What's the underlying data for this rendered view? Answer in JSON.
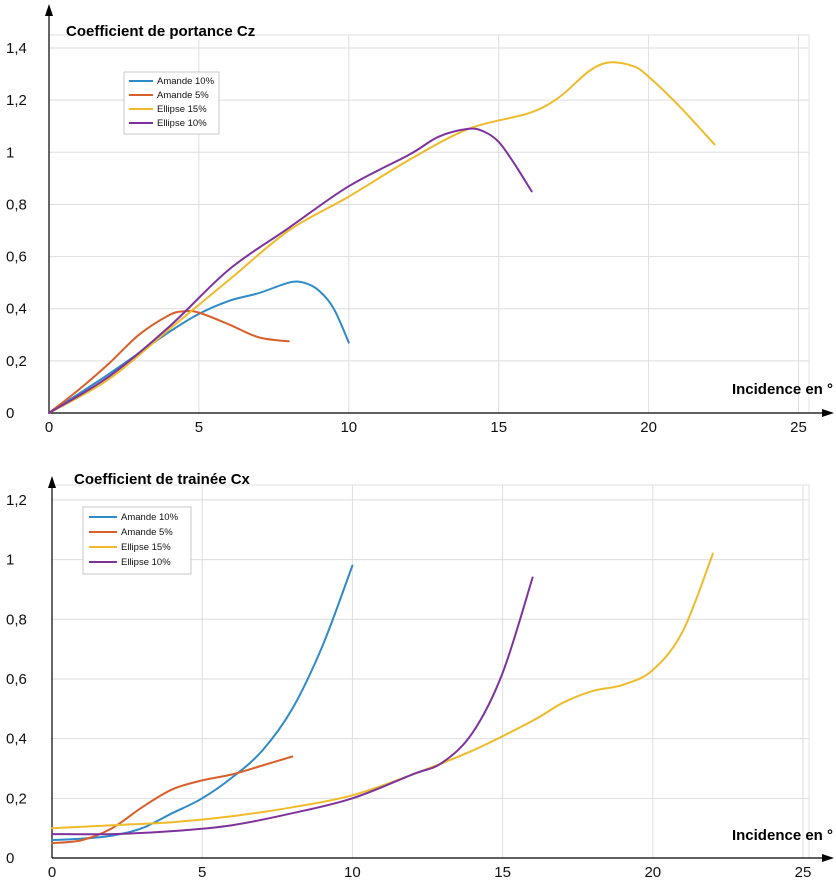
{
  "colors": {
    "amande10": "#2f8ac8",
    "amande5": "#d95f2a",
    "ellipse15": "#efbb2b",
    "ellipse10": "#7e339c"
  },
  "chart_data": [
    {
      "type": "line",
      "title": "Coefficient de portance Cz",
      "xlabel": "Incidence en °",
      "ylabel": "",
      "xlim": [
        0,
        26
      ],
      "ylim": [
        0,
        1.45
      ],
      "xticks": [
        "0",
        "5",
        "10",
        "15",
        "20",
        "25"
      ],
      "yticks": [
        "0",
        "0,2",
        "0,4",
        "0,6",
        "0,8",
        "1",
        "1,2",
        "1,4"
      ],
      "grid": true,
      "legend": "top-left",
      "series": [
        {
          "name": "Amande 10%",
          "color_key": "amande10",
          "points": [
            [
              0,
              0
            ],
            [
              2,
              0.15
            ],
            [
              4,
              0.31
            ],
            [
              5,
              0.38
            ],
            [
              6,
              0.43
            ],
            [
              7,
              0.46
            ],
            [
              8,
              0.5
            ],
            [
              8.5,
              0.5
            ],
            [
              9,
              0.47
            ],
            [
              9.5,
              0.4
            ],
            [
              10,
              0.27
            ]
          ]
        },
        {
          "name": "Amande 5%",
          "color_key": "amande5",
          "points": [
            [
              0,
              0
            ],
            [
              1,
              0.09
            ],
            [
              2,
              0.19
            ],
            [
              3,
              0.3
            ],
            [
              4,
              0.375
            ],
            [
              4.5,
              0.39
            ],
            [
              5,
              0.385
            ],
            [
              6,
              0.34
            ],
            [
              7,
              0.29
            ],
            [
              8,
              0.275
            ]
          ]
        },
        {
          "name": "Ellipse 15%",
          "color_key": "ellipse15",
          "points": [
            [
              0,
              0
            ],
            [
              2,
              0.13
            ],
            [
              4,
              0.32
            ],
            [
              6,
              0.51
            ],
            [
              8,
              0.7
            ],
            [
              10,
              0.83
            ],
            [
              12,
              0.97
            ],
            [
              14,
              1.09
            ],
            [
              16,
              1.15
            ],
            [
              17,
              1.21
            ],
            [
              18,
              1.31
            ],
            [
              18.7,
              1.345
            ],
            [
              19.5,
              1.33
            ],
            [
              20,
              1.29
            ],
            [
              21,
              1.18
            ],
            [
              22.2,
              1.03
            ]
          ]
        },
        {
          "name": "Ellipse 10%",
          "color_key": "ellipse10",
          "points": [
            [
              0,
              0
            ],
            [
              2,
              0.14
            ],
            [
              4,
              0.33
            ],
            [
              6,
              0.55
            ],
            [
              8,
              0.71
            ],
            [
              10,
              0.87
            ],
            [
              12,
              0.99
            ],
            [
              13,
              1.06
            ],
            [
              14,
              1.09
            ],
            [
              14.5,
              1.08
            ],
            [
              15,
              1.04
            ],
            [
              15.5,
              0.96
            ],
            [
              16.1,
              0.85
            ]
          ]
        }
      ]
    },
    {
      "type": "line",
      "title": "Coefficient de trainée Cx",
      "xlabel": "Incidence en °",
      "ylabel": "",
      "xlim": [
        0,
        26
      ],
      "ylim": [
        0,
        1.25
      ],
      "xticks": [
        "0",
        "5",
        "10",
        "15",
        "20",
        "25"
      ],
      "yticks": [
        "0",
        "0,2",
        "0,4",
        "0,6",
        "0,8",
        "1",
        "1,2"
      ],
      "grid": true,
      "legend": "top-left",
      "series": [
        {
          "name": "Amande 10%",
          "color_key": "amande10",
          "points": [
            [
              0,
              0.06
            ],
            [
              1,
              0.065
            ],
            [
              2,
              0.075
            ],
            [
              3,
              0.1
            ],
            [
              4,
              0.15
            ],
            [
              5,
              0.2
            ],
            [
              6,
              0.27
            ],
            [
              7,
              0.36
            ],
            [
              8,
              0.5
            ],
            [
              9,
              0.71
            ],
            [
              10,
              0.98
            ]
          ]
        },
        {
          "name": "Amande 5%",
          "color_key": "amande5",
          "points": [
            [
              0,
              0.05
            ],
            [
              1,
              0.06
            ],
            [
              2,
              0.1
            ],
            [
              3,
              0.17
            ],
            [
              4,
              0.23
            ],
            [
              5,
              0.26
            ],
            [
              6,
              0.28
            ],
            [
              7,
              0.31
            ],
            [
              8,
              0.34
            ]
          ]
        },
        {
          "name": "Ellipse 15%",
          "color_key": "ellipse15",
          "points": [
            [
              0,
              0.1
            ],
            [
              2,
              0.11
            ],
            [
              4,
              0.12
            ],
            [
              6,
              0.14
            ],
            [
              8,
              0.17
            ],
            [
              10,
              0.21
            ],
            [
              12,
              0.28
            ],
            [
              14,
              0.36
            ],
            [
              16,
              0.46
            ],
            [
              17,
              0.52
            ],
            [
              18,
              0.56
            ],
            [
              19,
              0.58
            ],
            [
              20,
              0.63
            ],
            [
              21,
              0.76
            ],
            [
              22,
              1.02
            ]
          ]
        },
        {
          "name": "Ellipse 10%",
          "color_key": "ellipse10",
          "points": [
            [
              0,
              0.08
            ],
            [
              2,
              0.08
            ],
            [
              4,
              0.09
            ],
            [
              6,
              0.11
            ],
            [
              8,
              0.15
            ],
            [
              10,
              0.2
            ],
            [
              12,
              0.28
            ],
            [
              13,
              0.32
            ],
            [
              14,
              0.42
            ],
            [
              15,
              0.62
            ],
            [
              16,
              0.94
            ]
          ]
        }
      ]
    }
  ]
}
